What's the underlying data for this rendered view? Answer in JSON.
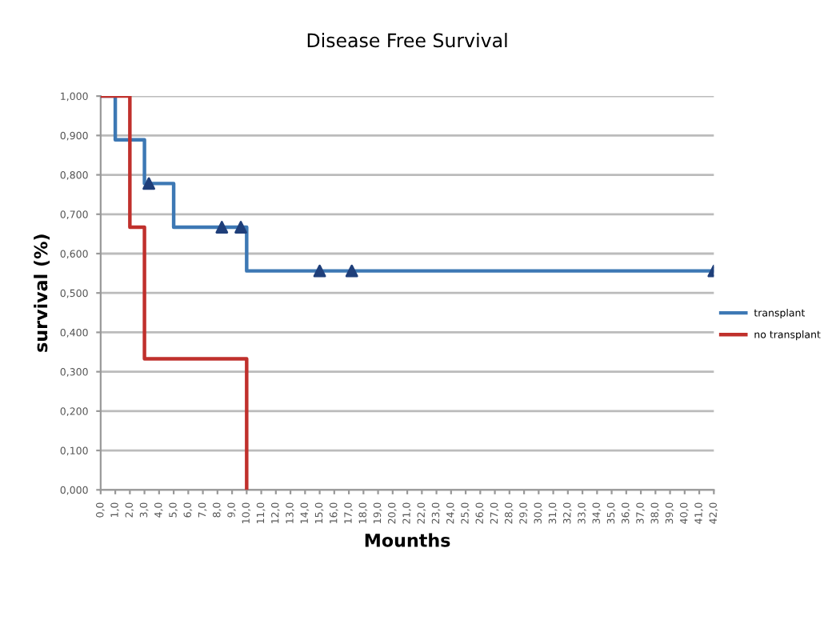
{
  "chart_data": {
    "type": "step",
    "title": "Disease Free Survival",
    "xlabel": "Mounths",
    "ylabel": "survival (%)",
    "series": [
      {
        "name": "transplant",
        "color": "#3d78b4",
        "x": [
          0,
          1,
          3,
          5,
          10,
          42
        ],
        "values": [
          1.0,
          0.889,
          0.778,
          0.667,
          0.556,
          0.556
        ]
      },
      {
        "name": "no transplant",
        "color": "#c0302c",
        "x": [
          0,
          2,
          3,
          10
        ],
        "values": [
          1.0,
          0.667,
          0.333,
          0.0
        ]
      },
      {
        "type": "scatter",
        "color": "#1f3f7a",
        "marker": "triangle",
        "x": [
          3.3,
          8.3,
          9.6,
          15.0,
          17.2,
          42.0
        ],
        "values": [
          0.778,
          0.667,
          0.667,
          0.556,
          0.556,
          0.556
        ]
      }
    ],
    "xlim": [
      0,
      42
    ],
    "xticks": [
      {
        "value": 0,
        "label": "0,0"
      },
      {
        "value": 1,
        "label": "1,0"
      },
      {
        "value": 2,
        "label": "2,0"
      },
      {
        "value": 3,
        "label": "3,0"
      },
      {
        "value": 4,
        "label": "4,0"
      },
      {
        "value": 5,
        "label": "5,0"
      },
      {
        "value": 6,
        "label": "6,0"
      },
      {
        "value": 7,
        "label": "7,0"
      },
      {
        "value": 8,
        "label": "8,0"
      },
      {
        "value": 9,
        "label": "9,0"
      },
      {
        "value": 10,
        "label": "10,0"
      },
      {
        "value": 11,
        "label": "11,0"
      },
      {
        "value": 12,
        "label": "12,0"
      },
      {
        "value": 13,
        "label": "13,0"
      },
      {
        "value": 14,
        "label": "14,0"
      },
      {
        "value": 15,
        "label": "15,0"
      },
      {
        "value": 16,
        "label": "16,0"
      },
      {
        "value": 17,
        "label": "17,0"
      },
      {
        "value": 18,
        "label": "18,0"
      },
      {
        "value": 19,
        "label": "19,0"
      },
      {
        "value": 20,
        "label": "20,0"
      },
      {
        "value": 21,
        "label": "21,0"
      },
      {
        "value": 22,
        "label": "22,0"
      },
      {
        "value": 23,
        "label": "23,0"
      },
      {
        "value": 24,
        "label": "24,0"
      },
      {
        "value": 25,
        "label": "25,0"
      },
      {
        "value": 26,
        "label": "26,0"
      },
      {
        "value": 27,
        "label": "27,0"
      },
      {
        "value": 28,
        "label": "28,0"
      },
      {
        "value": 29,
        "label": "29,0"
      },
      {
        "value": 30,
        "label": "30,0"
      },
      {
        "value": 31,
        "label": "31,0"
      },
      {
        "value": 32,
        "label": "32,0"
      },
      {
        "value": 33,
        "label": "33,0"
      },
      {
        "value": 34,
        "label": "34,0"
      },
      {
        "value": 35,
        "label": "35,0"
      },
      {
        "value": 36,
        "label": "36,0"
      },
      {
        "value": 37,
        "label": "37,0"
      },
      {
        "value": 38,
        "label": "38,0"
      },
      {
        "value": 39,
        "label": "39,0"
      },
      {
        "value": 40,
        "label": "40,0"
      },
      {
        "value": 41,
        "label": "41,0"
      },
      {
        "value": 42,
        "label": "42,0"
      }
    ],
    "ylim": [
      0,
      1
    ],
    "yticks": [
      {
        "value": 0,
        "label": "0,000"
      },
      {
        "value": 0.1,
        "label": "0,100"
      },
      {
        "value": 0.2,
        "label": "0,200"
      },
      {
        "value": 0.3,
        "label": "0,300"
      },
      {
        "value": 0.4,
        "label": "0,400"
      },
      {
        "value": 0.5,
        "label": "0,500"
      },
      {
        "value": 0.6,
        "label": "0,600"
      },
      {
        "value": 0.7,
        "label": "0,700"
      },
      {
        "value": 0.8,
        "label": "0,800"
      },
      {
        "value": 0.9,
        "label": "0,900"
      },
      {
        "value": 1.0,
        "label": "1,000"
      }
    ],
    "grid": "y",
    "legend": "right"
  }
}
